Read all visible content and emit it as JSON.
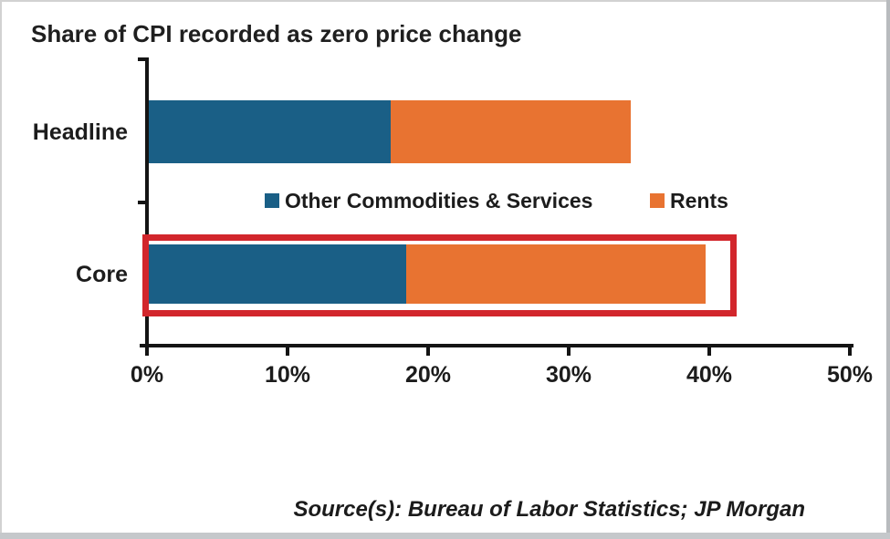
{
  "chart_data": {
    "type": "bar",
    "orientation": "horizontal",
    "stacked": true,
    "title": "Share of CPI recorded as zero price change",
    "categories": [
      "Headline",
      "Core"
    ],
    "series": [
      {
        "name": "Other Commodities & Services",
        "color": "#1A5F86",
        "values": [
          17.2,
          18.3
        ]
      },
      {
        "name": "Rents",
        "color": "#E87331",
        "values": [
          17.1,
          21.3
        ]
      }
    ],
    "totals": [
      34.3,
      39.6
    ],
    "xlim": [
      0,
      50
    ],
    "xticks": [
      "0%",
      "10%",
      "20%",
      "30%",
      "40%",
      "50%"
    ],
    "grid": false,
    "legend_position": "inside-center-between-bars",
    "source": "Source(s): Bureau of Labor Statistics; JP Morgan"
  },
  "annotations": {
    "highlight_description": "red rectangle outlining the Core bar",
    "highlight_color": "#D2262C"
  }
}
